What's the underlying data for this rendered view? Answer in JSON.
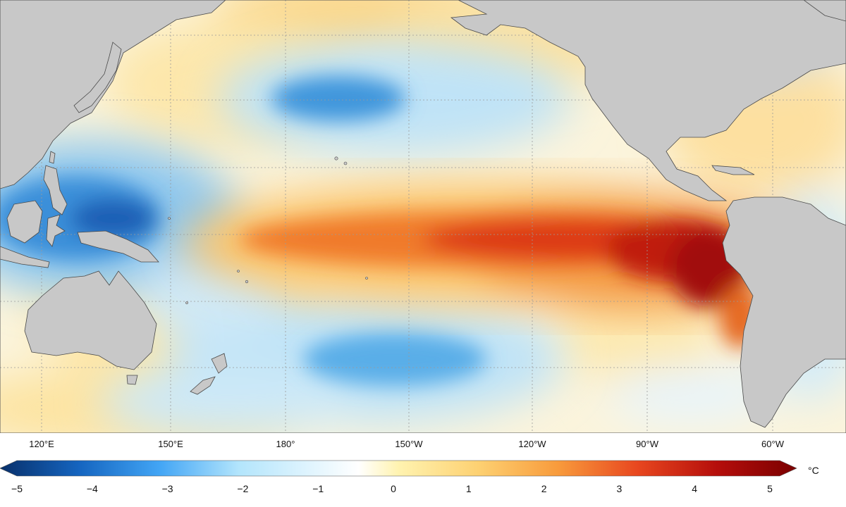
{
  "map": {
    "longitude_labels": [
      "120°E",
      "150°E",
      "180°",
      "150°W",
      "120°W",
      "90°W",
      "60°W"
    ],
    "land_color": "#c8c8c8",
    "coastline_color": "#444444",
    "graticule": "dotted"
  },
  "colorbar": {
    "ticks": [
      "−5",
      "−4",
      "−3",
      "−2",
      "−1",
      "0",
      "1",
      "2",
      "3",
      "4",
      "5"
    ],
    "unit": "°C",
    "min": -5,
    "max": 5,
    "extend": "both",
    "colors": [
      "#08306b",
      "#1565c0",
      "#42a5f5",
      "#b3e5fc",
      "#ffffff",
      "#fff3b0",
      "#fdd172",
      "#f89b3c",
      "#e8471f",
      "#b50e0b",
      "#7a0000"
    ]
  }
}
